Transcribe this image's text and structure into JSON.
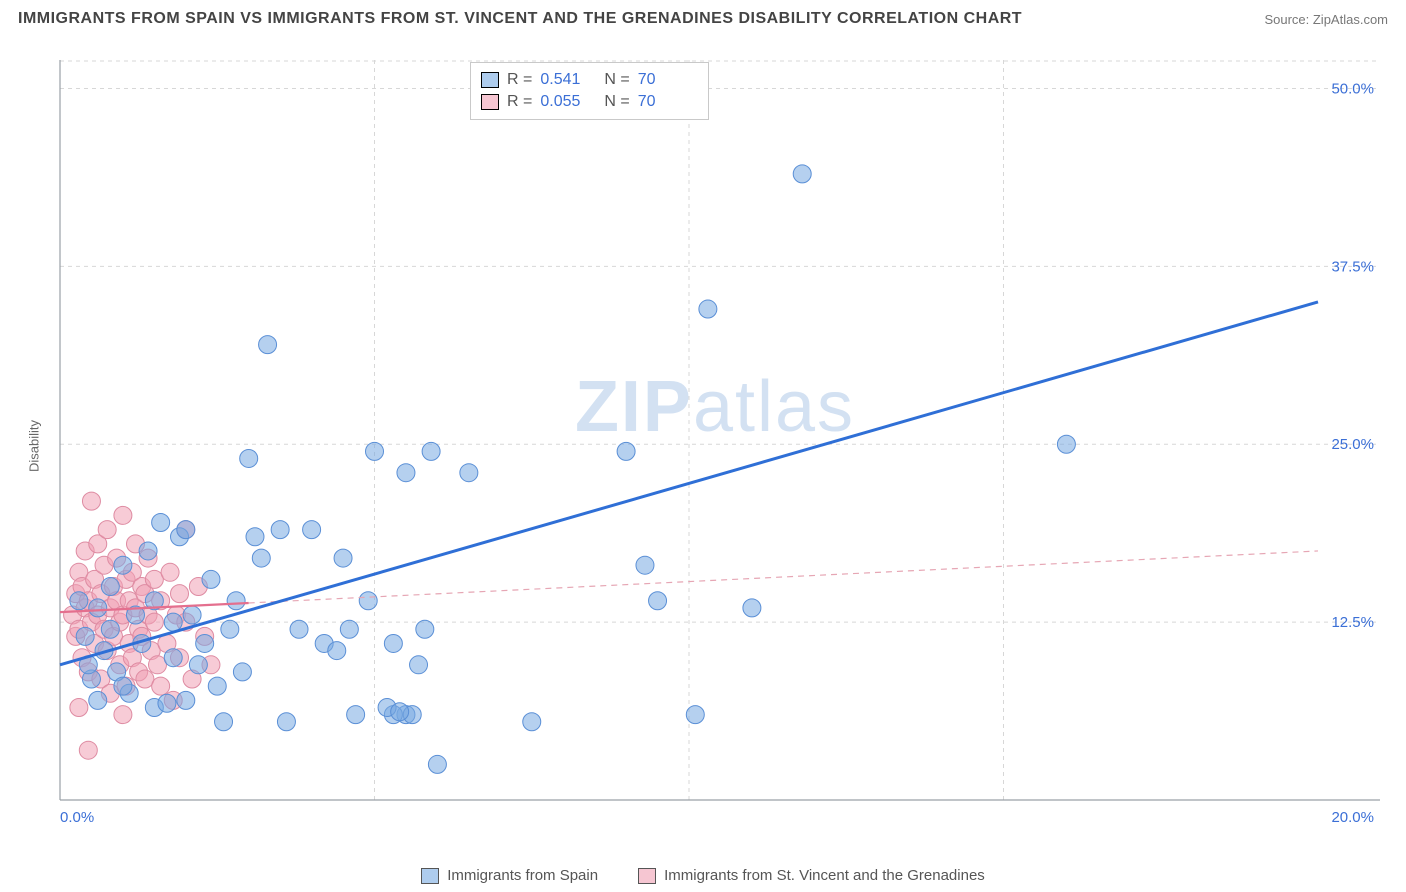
{
  "header": {
    "title": "IMMIGRANTS FROM SPAIN VS IMMIGRANTS FROM ST. VINCENT AND THE GRENADINES DISABILITY CORRELATION CHART",
    "source": "Source: ZipAtlas.com"
  },
  "y_axis_label": "Disability",
  "watermark": {
    "bold": "ZIP",
    "light": "atlas"
  },
  "stats": {
    "series1": {
      "r_label": "R =",
      "r_value": "0.541",
      "n_label": "N =",
      "n_value": "70"
    },
    "series2": {
      "r_label": "R =",
      "r_value": "0.055",
      "n_label": "N =",
      "n_value": "70"
    }
  },
  "legend": {
    "series1": "Immigrants from Spain",
    "series2": "Immigrants from St. Vincent and the Grenadines"
  },
  "chart": {
    "type": "scatter",
    "background_color": "#ffffff",
    "grid_color": "#d7d7d7",
    "axis_color": "#9aa0a6",
    "tick_color": "#3b6fd6",
    "xlim": [
      0,
      20
    ],
    "ylim": [
      0,
      52
    ],
    "y_ticks": [
      {
        "v": 12.5,
        "l": "12.5%"
      },
      {
        "v": 25,
        "l": "25.0%"
      },
      {
        "v": 37.5,
        "l": "37.5%"
      },
      {
        "v": 50,
        "l": "50.0%"
      }
    ],
    "x_ticks": [
      {
        "v": 0,
        "l": "0.0%"
      },
      {
        "v": 20,
        "l": "20.0%"
      }
    ],
    "x_grid_at": [
      5,
      10,
      15
    ],
    "marker_radius": 9,
    "series_blue": {
      "color_fill": "rgba(120,170,225,0.55)",
      "color_stroke": "#5a8fd6",
      "trend_color": "#2f6fd6",
      "trend_width": 3,
      "trend_dash": "none",
      "trend": {
        "x1": 0,
        "y1": 9.5,
        "x2": 20,
        "y2": 35.0
      },
      "points": [
        [
          0.3,
          14
        ],
        [
          0.4,
          11.5
        ],
        [
          0.5,
          8.5
        ],
        [
          0.6,
          13.5
        ],
        [
          0.7,
          10.5
        ],
        [
          0.8,
          15
        ],
        [
          0.8,
          12
        ],
        [
          0.9,
          9
        ],
        [
          1.0,
          16.5
        ],
        [
          1.1,
          7.5
        ],
        [
          1.2,
          13
        ],
        [
          1.3,
          11
        ],
        [
          1.4,
          17.5
        ],
        [
          1.5,
          6.5
        ],
        [
          1.5,
          14
        ],
        [
          1.6,
          19.5
        ],
        [
          1.8,
          10
        ],
        [
          1.8,
          12.5
        ],
        [
          1.9,
          18.5
        ],
        [
          2.0,
          19
        ],
        [
          2.0,
          7
        ],
        [
          2.1,
          13
        ],
        [
          2.2,
          9.5
        ],
        [
          2.3,
          11
        ],
        [
          2.4,
          15.5
        ],
        [
          2.5,
          8
        ],
        [
          2.6,
          5.5
        ],
        [
          2.7,
          12
        ],
        [
          2.8,
          14
        ],
        [
          3.0,
          24
        ],
        [
          3.1,
          18.5
        ],
        [
          3.2,
          17
        ],
        [
          3.3,
          32
        ],
        [
          3.5,
          19
        ],
        [
          3.6,
          5.5
        ],
        [
          3.8,
          12
        ],
        [
          4.0,
          19
        ],
        [
          4.2,
          11
        ],
        [
          4.4,
          10.5
        ],
        [
          4.6,
          12
        ],
        [
          4.7,
          6
        ],
        [
          4.9,
          14
        ],
        [
          5.0,
          24.5
        ],
        [
          5.3,
          11
        ],
        [
          5.5,
          23
        ],
        [
          5.5,
          6
        ],
        [
          5.6,
          6
        ],
        [
          5.7,
          9.5
        ],
        [
          5.8,
          12
        ],
        [
          5.9,
          24.5
        ],
        [
          6.0,
          2.5
        ],
        [
          6.5,
          23
        ],
        [
          7.5,
          5.5
        ],
        [
          9.0,
          24.5
        ],
        [
          9.3,
          16.5
        ],
        [
          9.5,
          14
        ],
        [
          10.1,
          6
        ],
        [
          11.0,
          13.5
        ],
        [
          11.8,
          44
        ],
        [
          10.3,
          34.5
        ],
        [
          16.0,
          25
        ],
        [
          5.3,
          6
        ],
        [
          5.2,
          6.5
        ],
        [
          2.9,
          9
        ],
        [
          1.0,
          8
        ],
        [
          0.6,
          7
        ],
        [
          0.45,
          9.5
        ],
        [
          1.7,
          6.8
        ],
        [
          4.5,
          17
        ],
        [
          5.4,
          6.2
        ]
      ]
    },
    "series_pink": {
      "color_fill": "rgba(240,160,180,0.55)",
      "color_stroke": "#de8ba2",
      "trend_color": "#e6a6b4",
      "trend_width": 1.2,
      "trend_dash": "6 5",
      "trend": {
        "x1": 0,
        "y1": 13.2,
        "x2": 20,
        "y2": 17.5
      },
      "points": [
        [
          0.2,
          13
        ],
        [
          0.25,
          14.5
        ],
        [
          0.25,
          11.5
        ],
        [
          0.3,
          16
        ],
        [
          0.3,
          12
        ],
        [
          0.35,
          10
        ],
        [
          0.35,
          15
        ],
        [
          0.4,
          13.5
        ],
        [
          0.4,
          17.5
        ],
        [
          0.45,
          9
        ],
        [
          0.45,
          14
        ],
        [
          0.5,
          12.5
        ],
        [
          0.5,
          21
        ],
        [
          0.55,
          11
        ],
        [
          0.55,
          15.5
        ],
        [
          0.6,
          18
        ],
        [
          0.6,
          13
        ],
        [
          0.65,
          8.5
        ],
        [
          0.65,
          14.5
        ],
        [
          0.7,
          16.5
        ],
        [
          0.7,
          12
        ],
        [
          0.75,
          10.5
        ],
        [
          0.75,
          19
        ],
        [
          0.8,
          13.5
        ],
        [
          0.8,
          7.5
        ],
        [
          0.85,
          15
        ],
        [
          0.85,
          11.5
        ],
        [
          0.9,
          14
        ],
        [
          0.9,
          17
        ],
        [
          0.95,
          9.5
        ],
        [
          0.95,
          12.5
        ],
        [
          1.0,
          20
        ],
        [
          1.0,
          13
        ],
        [
          1.05,
          8
        ],
        [
          1.05,
          15.5
        ],
        [
          1.1,
          11
        ],
        [
          1.1,
          14
        ],
        [
          1.15,
          16
        ],
        [
          1.15,
          10
        ],
        [
          1.2,
          13.5
        ],
        [
          1.2,
          18
        ],
        [
          1.25,
          9
        ],
        [
          1.25,
          12
        ],
        [
          1.3,
          15
        ],
        [
          1.3,
          11.5
        ],
        [
          1.35,
          14.5
        ],
        [
          1.35,
          8.5
        ],
        [
          1.4,
          13
        ],
        [
          1.4,
          17
        ],
        [
          1.45,
          10.5
        ],
        [
          1.5,
          12.5
        ],
        [
          1.5,
          15.5
        ],
        [
          1.55,
          9.5
        ],
        [
          1.6,
          14
        ],
        [
          1.7,
          11
        ],
        [
          1.75,
          16
        ],
        [
          1.8,
          7
        ],
        [
          1.85,
          13
        ],
        [
          1.9,
          10
        ],
        [
          2.0,
          19
        ],
        [
          2.0,
          12.5
        ],
        [
          2.1,
          8.5
        ],
        [
          2.2,
          15
        ],
        [
          2.3,
          11.5
        ],
        [
          0.45,
          3.5
        ],
        [
          0.3,
          6.5
        ],
        [
          1.0,
          6
        ],
        [
          1.6,
          8
        ],
        [
          1.9,
          14.5
        ],
        [
          2.4,
          9.5
        ]
      ]
    }
  }
}
